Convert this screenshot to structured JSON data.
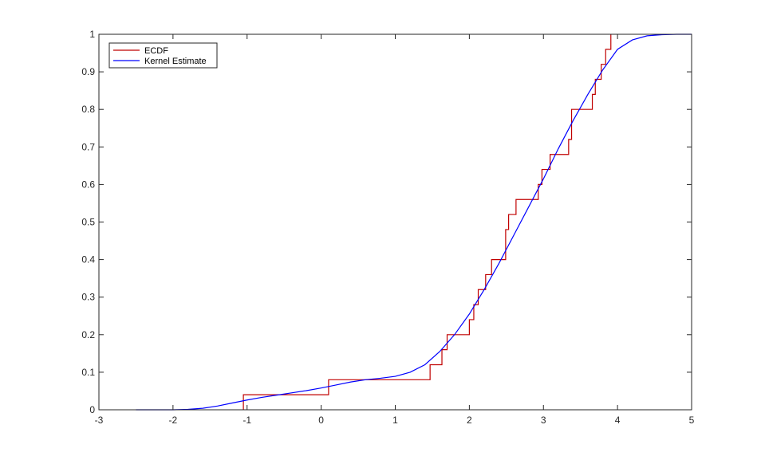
{
  "chart_data": {
    "type": "line",
    "title": "",
    "xlabel": "",
    "ylabel": "",
    "xlim": [
      -3,
      5
    ],
    "ylim": [
      0,
      1
    ],
    "x_ticks": [
      "-3",
      "-2",
      "-1",
      "0",
      "1",
      "2",
      "3",
      "4",
      "5"
    ],
    "y_ticks": [
      "0",
      "0.1",
      "0.2",
      "0.3",
      "0.4",
      "0.5",
      "0.6",
      "0.7",
      "0.8",
      "0.9",
      "1"
    ],
    "grid": false,
    "legend": {
      "position": "top-left",
      "entries": [
        "ECDF",
        "Kernel Estimate"
      ]
    },
    "series": [
      {
        "name": "ECDF",
        "style": "step",
        "color": "#c00000",
        "x": [
          -1.05,
          0.1,
          1.47,
          1.63,
          1.7,
          2.0,
          2.06,
          2.12,
          2.22,
          2.3,
          2.49,
          2.53,
          2.63,
          2.93,
          2.98,
          3.09,
          3.34,
          3.38,
          3.66,
          3.7,
          3.78,
          3.84,
          3.91
        ],
        "y": [
          0.04,
          0.08,
          0.12,
          0.16,
          0.2,
          0.24,
          0.28,
          0.32,
          0.36,
          0.4,
          0.48,
          0.52,
          0.56,
          0.6,
          0.64,
          0.68,
          0.72,
          0.8,
          0.84,
          0.88,
          0.92,
          0.96,
          1.0
        ]
      },
      {
        "name": "Kernel Estimate",
        "style": "line",
        "color": "#0000ff",
        "x": [
          -2.5,
          -2.0,
          -1.8,
          -1.6,
          -1.4,
          -1.2,
          -1.0,
          -0.8,
          -0.6,
          -0.4,
          -0.2,
          0.0,
          0.2,
          0.4,
          0.6,
          0.8,
          1.0,
          1.2,
          1.4,
          1.6,
          1.8,
          2.0,
          2.2,
          2.4,
          2.6,
          2.8,
          3.0,
          3.2,
          3.4,
          3.6,
          3.8,
          4.0,
          4.2,
          4.4,
          4.6,
          4.8,
          5.0
        ],
        "y": [
          0.0,
          0.0,
          0.001,
          0.004,
          0.01,
          0.018,
          0.026,
          0.033,
          0.039,
          0.045,
          0.051,
          0.058,
          0.066,
          0.074,
          0.08,
          0.084,
          0.089,
          0.1,
          0.12,
          0.155,
          0.2,
          0.255,
          0.32,
          0.39,
          0.465,
          0.54,
          0.615,
          0.695,
          0.77,
          0.84,
          0.905,
          0.96,
          0.985,
          0.996,
          0.999,
          1.0,
          1.0
        ]
      }
    ]
  }
}
